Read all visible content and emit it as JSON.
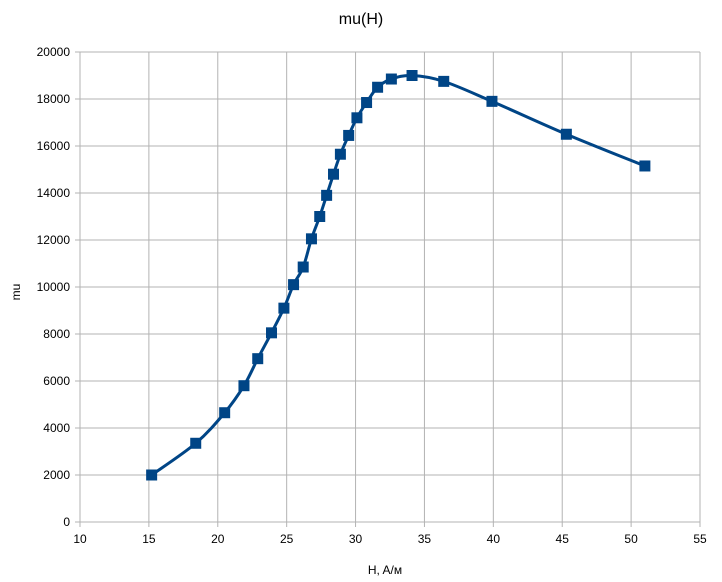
{
  "chart_data": {
    "type": "scatter",
    "title": "mu(H)",
    "xlabel": "H, A/м",
    "ylabel": "mu",
    "xlim": [
      10,
      55
    ],
    "ylim": [
      0,
      20000
    ],
    "x_ticks": [
      10,
      15,
      20,
      25,
      30,
      35,
      40,
      45,
      50,
      55
    ],
    "y_ticks": [
      0,
      2000,
      4000,
      6000,
      8000,
      10000,
      12000,
      14000,
      16000,
      18000,
      20000
    ],
    "grid": true,
    "legend": "none",
    "line_style": "smoothed lines with square markers",
    "colors": {
      "series": "#004586",
      "marker_fill": "#004586",
      "grid": "#b3b3b3"
    },
    "series": [
      {
        "points": [
          [
            15.2,
            2000
          ],
          [
            18.4,
            3350
          ],
          [
            20.5,
            4650
          ],
          [
            21.9,
            5800
          ],
          [
            22.9,
            6950
          ],
          [
            23.9,
            8050
          ],
          [
            24.8,
            9100
          ],
          [
            25.5,
            10100
          ],
          [
            26.2,
            10850
          ],
          [
            26.8,
            12050
          ],
          [
            27.4,
            13000
          ],
          [
            27.9,
            13900
          ],
          [
            28.4,
            14800
          ],
          [
            28.9,
            15650
          ],
          [
            29.5,
            16450
          ],
          [
            30.1,
            17200
          ],
          [
            30.8,
            17850
          ],
          [
            31.6,
            18500
          ],
          [
            32.6,
            18850
          ],
          [
            34.1,
            19000
          ],
          [
            36.4,
            18750
          ],
          [
            39.9,
            17900
          ],
          [
            45.3,
            16500
          ],
          [
            51.0,
            15150
          ]
        ]
      }
    ]
  }
}
